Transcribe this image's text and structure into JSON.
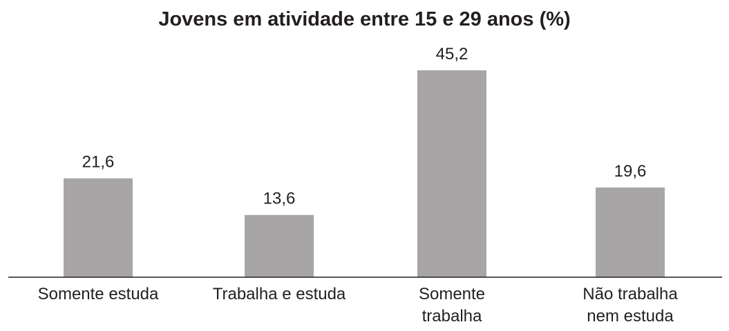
{
  "chart_data": {
    "type": "bar",
    "title": "Jovens em atividade entre 15 e 29 anos (%)",
    "xlabel": "",
    "ylabel": "",
    "categories": [
      [
        "Somente estuda"
      ],
      [
        "Trabalha e estuda"
      ],
      [
        "Somente",
        "trabalha"
      ],
      [
        "Não trabalha",
        "nem estuda"
      ]
    ],
    "values": [
      21.6,
      13.6,
      45.2,
      19.6
    ],
    "value_labels": [
      "21,6",
      "13,6",
      "45,2",
      "19,6"
    ],
    "ylim": [
      0,
      50
    ],
    "grid": false,
    "legend": "none",
    "colors": {
      "bar": "#a7a5a6",
      "axis": "#231f20",
      "text": "#231f20"
    }
  }
}
